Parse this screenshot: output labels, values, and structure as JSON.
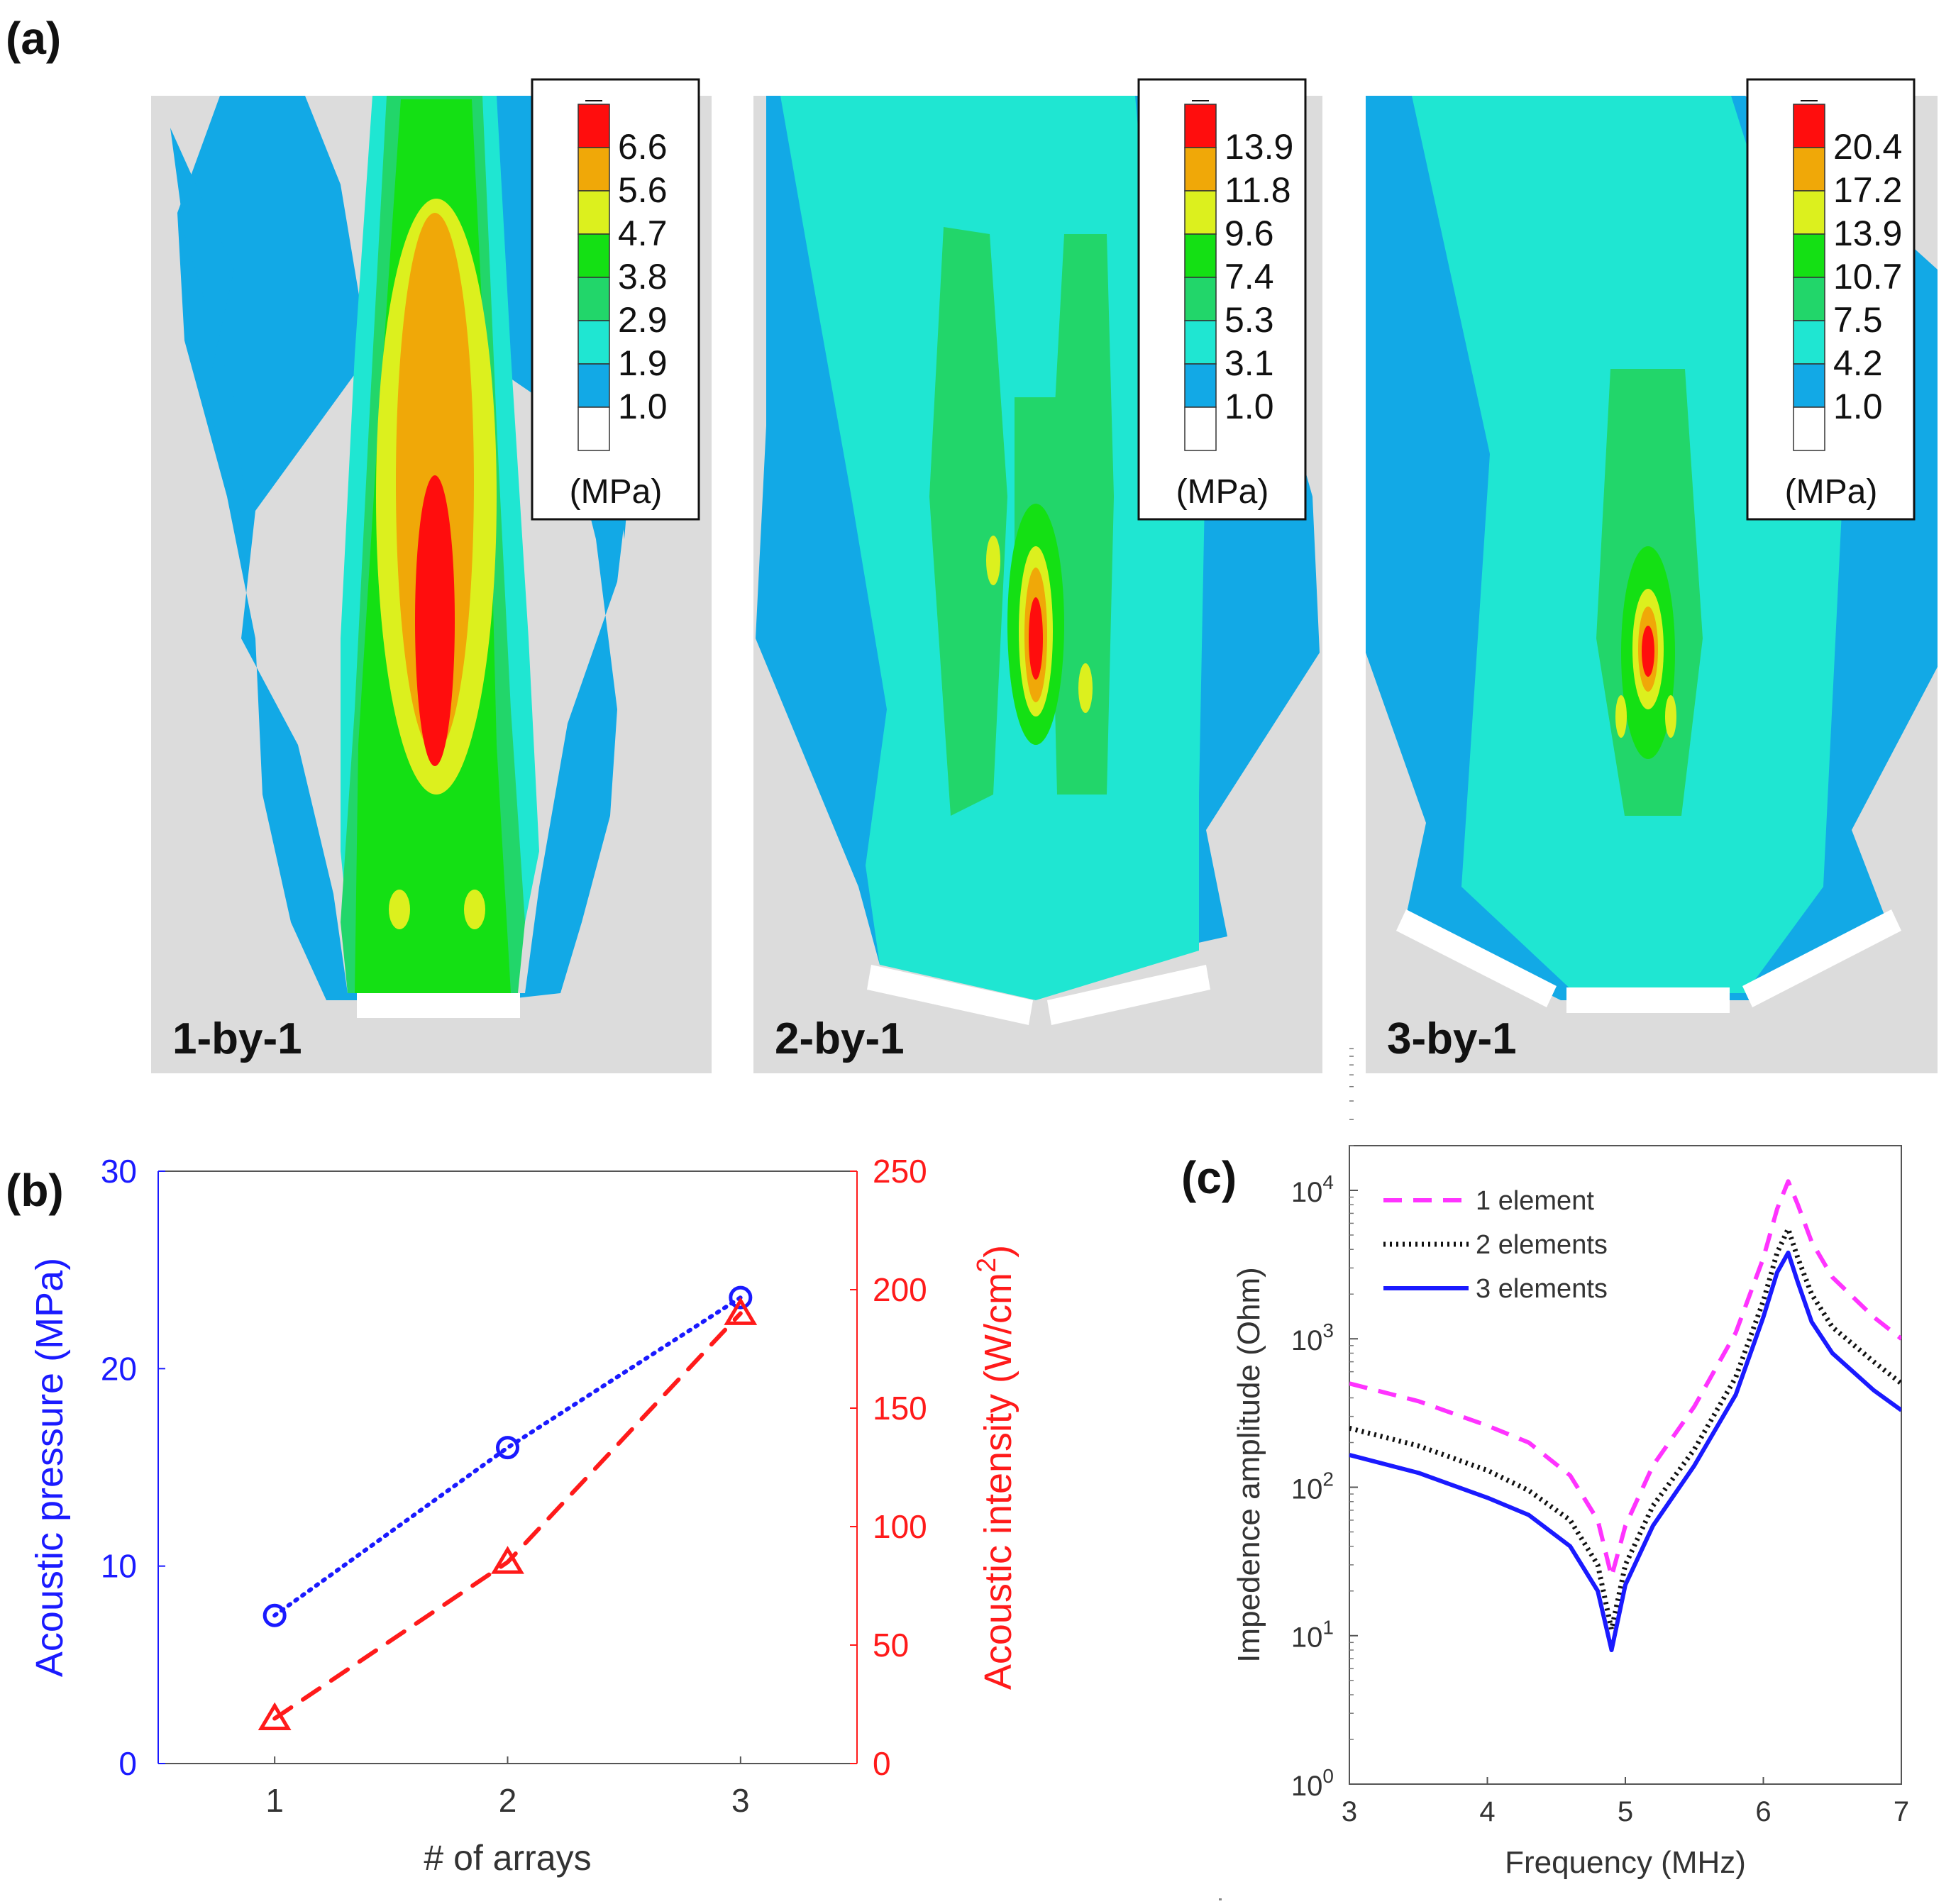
{
  "panel_labels": {
    "a": "(a)",
    "b": "(b)",
    "c": "(c)"
  },
  "chart_data": [
    {
      "type": "heatmap",
      "panel": "(a)",
      "units": "(MPa)",
      "level_colors": [
        "#ffffff",
        "#12a9e6",
        "#1fe6d2",
        "#22d66a",
        "#14e014",
        "#dcf01e",
        "#f0a808",
        "#ff0d0d"
      ],
      "maps": [
        {
          "label": "1-by-1",
          "levels": [
            "6.6",
            "5.6",
            "4.7",
            "3.8",
            "2.9",
            "1.9",
            "1.0"
          ]
        },
        {
          "label": "2-by-1",
          "levels": [
            "13.9",
            "11.8",
            "9.6",
            "7.4",
            "5.3",
            "3.1",
            "1.0"
          ]
        },
        {
          "label": "3-by-1",
          "levels": [
            "20.4",
            "17.2",
            "13.9",
            "10.7",
            "7.5",
            "4.2",
            "1.0"
          ]
        }
      ]
    },
    {
      "type": "line",
      "panel": "(b)",
      "xlabel": "# of arrays",
      "ylabel": "Acoustic pressure (MPa)",
      "ylabel2_main": "Acoustic intensity (W/cm",
      "ylabel2_sup": "2",
      "ylabel2_tail": ")",
      "xlim": [
        0.5,
        3.5
      ],
      "ylim": [
        0,
        30
      ],
      "ylim2": [
        0,
        250
      ],
      "xticks": [
        1,
        2,
        3
      ],
      "yticks": [
        0,
        10,
        20,
        30
      ],
      "yticks2": [
        0,
        50,
        100,
        150,
        200,
        250
      ],
      "axis_colors": {
        "left": "#1a1aff",
        "right": "#ff1a1a"
      },
      "series": [
        {
          "name": "Acoustic pressure",
          "axis": "left",
          "color": "#1a1aff",
          "marker": "circle",
          "x": [
            1,
            2,
            3
          ],
          "values": [
            7.5,
            16.0,
            23.6
          ]
        },
        {
          "name": "Acoustic intensity",
          "axis": "right",
          "color": "#ff1a1a",
          "marker": "triangle",
          "x": [
            1,
            2,
            3
          ],
          "values": [
            19,
            85,
            190
          ]
        }
      ]
    },
    {
      "type": "line",
      "panel": "(c)",
      "xlabel": "Frequency (MHz)",
      "ylabel": "Impedence amplitude (Ohm)",
      "yscale": "log",
      "xlim": [
        3,
        7
      ],
      "ylim": [
        1,
        20000
      ],
      "xticks": [
        3,
        4,
        5,
        6,
        7
      ],
      "yticks": [
        {
          "value": 1,
          "base": "10",
          "exp": "0"
        },
        {
          "value": 10,
          "base": "10",
          "exp": "1"
        },
        {
          "value": 100,
          "base": "10",
          "exp": "2"
        },
        {
          "value": 1000,
          "base": "10",
          "exp": "3"
        },
        {
          "value": 10000,
          "base": "10",
          "exp": "4"
        }
      ],
      "legend_position": "top-left",
      "series": [
        {
          "name": "1 element",
          "color": "#ff33ff",
          "style": "dashed",
          "x": [
            3.0,
            3.5,
            4.0,
            4.3,
            4.6,
            4.8,
            4.9,
            5.0,
            5.2,
            5.5,
            5.8,
            6.0,
            6.1,
            6.18,
            6.25,
            6.35,
            6.5,
            6.8,
            7.0
          ],
          "values": [
            500,
            380,
            260,
            200,
            120,
            60,
            25,
            55,
            140,
            350,
            1100,
            3500,
            7500,
            11500,
            8000,
            4500,
            2600,
            1400,
            1000
          ]
        },
        {
          "name": "2 elements",
          "color": "#111111",
          "style": "dotted",
          "x": [
            3.0,
            3.5,
            4.0,
            4.3,
            4.6,
            4.8,
            4.9,
            5.0,
            5.2,
            5.5,
            5.8,
            6.0,
            6.1,
            6.18,
            6.25,
            6.35,
            6.5,
            6.8,
            7.0
          ],
          "values": [
            250,
            190,
            130,
            95,
            60,
            30,
            11,
            30,
            75,
            180,
            550,
            1800,
            3800,
            5500,
            3500,
            2000,
            1200,
            700,
            500
          ]
        },
        {
          "name": "3 elements",
          "color": "#1a1aff",
          "style": "solid",
          "x": [
            3.0,
            3.5,
            4.0,
            4.3,
            4.6,
            4.8,
            4.9,
            5.0,
            5.2,
            5.5,
            5.8,
            6.0,
            6.1,
            6.18,
            6.25,
            6.35,
            6.5,
            6.8,
            7.0
          ],
          "values": [
            165,
            125,
            85,
            65,
            40,
            20,
            8,
            22,
            55,
            140,
            420,
            1400,
            2800,
            3800,
            2400,
            1300,
            800,
            450,
            330
          ]
        }
      ]
    }
  ]
}
